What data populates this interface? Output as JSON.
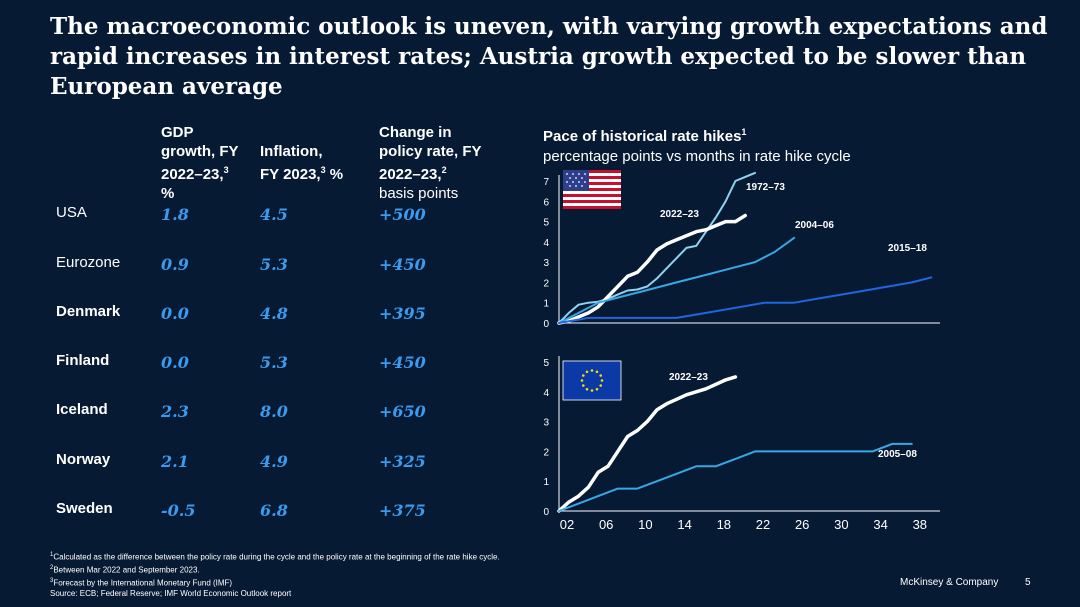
{
  "title": "The macroeconomic outlook is uneven, with varying growth expectations and rapid  increases in interest rates; Austria growth expected to be slower than European average",
  "table": {
    "headers": [
      {
        "lines": [
          "GDP",
          "growth, FY",
          "2022–23,"
        ],
        "sup": "3",
        "tail": "%"
      },
      {
        "lines": [
          "Inflation,",
          "FY 2023,"
        ],
        "sup": "3",
        "tail": " %"
      },
      {
        "lines": [
          "Change in",
          "policy rate, FY",
          "2022–23,"
        ],
        "sup": "2",
        "tail": "basis points"
      }
    ],
    "rows": [
      {
        "country": "USA",
        "gdp": "1.8",
        "inflation": "4.5",
        "rate": "+500",
        "bold": false
      },
      {
        "country": "Eurozone",
        "gdp": "0.9",
        "inflation": "5.3",
        "rate": "+450",
        "bold": false
      },
      {
        "country": "Denmark",
        "gdp": "0.0",
        "inflation": "4.8",
        "rate": "+395",
        "bold": true
      },
      {
        "country": "Finland",
        "gdp": "0.0",
        "inflation": "5.3",
        "rate": "+450",
        "bold": true
      },
      {
        "country": "Iceland",
        "gdp": "2.3",
        "inflation": "8.0",
        "rate": "+650",
        "bold": true
      },
      {
        "country": "Norway",
        "gdp": "2.1",
        "inflation": "4.9",
        "rate": "+325",
        "bold": true
      },
      {
        "country": "Sweden",
        "gdp": "-0.5",
        "inflation": "6.8",
        "rate": "+375",
        "bold": true
      }
    ]
  },
  "chart_title": {
    "main": "Pace of historical rate hikes",
    "sup": "1",
    "subtitle": "percentage points vs months in rate hike cycle"
  },
  "chart_data": [
    {
      "type": "line",
      "region_icon": "us-flag-icon",
      "ylim": [
        0,
        7
      ],
      "yticks": [
        "0",
        "1",
        "2",
        "3",
        "4",
        "5",
        "6",
        "7"
      ],
      "xlim": [
        0,
        38
      ],
      "series": [
        {
          "name": "1972–73",
          "color": "#8fd3f0",
          "x": [
            0,
            1,
            2,
            3,
            4,
            5,
            6,
            7,
            8,
            9,
            10,
            11,
            12,
            13,
            14,
            15,
            16,
            17,
            18,
            19,
            20
          ],
          "y": [
            0,
            0.5,
            0.9,
            1.0,
            1.05,
            1.2,
            1.4,
            1.6,
            1.65,
            1.8,
            2.2,
            2.7,
            3.2,
            3.7,
            3.8,
            4.5,
            5.2,
            6.0,
            7.0,
            7.2,
            7.4
          ]
        },
        {
          "name": "2022–23",
          "color": "#ffffff",
          "x": [
            0,
            1,
            2,
            3,
            4,
            5,
            6,
            7,
            8,
            9,
            10,
            11,
            12,
            13,
            14,
            15,
            16,
            17,
            18,
            19
          ],
          "y": [
            0,
            0.1,
            0.3,
            0.5,
            0.8,
            1.3,
            1.8,
            2.3,
            2.5,
            3.0,
            3.6,
            3.9,
            4.1,
            4.3,
            4.5,
            4.6,
            4.8,
            5.0,
            5.0,
            5.3
          ]
        },
        {
          "name": "2004–06",
          "color": "#38a7e6",
          "x": [
            0,
            2,
            4,
            6,
            8,
            10,
            12,
            14,
            16,
            18,
            20,
            22,
            24
          ],
          "y": [
            0,
            0.5,
            1.0,
            1.25,
            1.5,
            1.75,
            2.0,
            2.25,
            2.5,
            2.75,
            3.0,
            3.5,
            4.2
          ]
        },
        {
          "name": "2015–18",
          "color": "#1f66e0",
          "x": [
            0,
            3,
            6,
            9,
            12,
            15,
            18,
            21,
            24,
            27,
            30,
            33,
            36,
            38
          ],
          "y": [
            0,
            0.25,
            0.25,
            0.25,
            0.25,
            0.5,
            0.75,
            1.0,
            1.0,
            1.25,
            1.5,
            1.75,
            2.0,
            2.25
          ]
        }
      ]
    },
    {
      "type": "line",
      "region_icon": "eu-flag-icon",
      "ylim": [
        0,
        5
      ],
      "yticks": [
        "0",
        "1",
        "2",
        "3",
        "4",
        "5"
      ],
      "xlim": [
        0,
        38
      ],
      "xticks": [
        "02",
        "06",
        "10",
        "14",
        "18",
        "22",
        "26",
        "30",
        "34",
        "38"
      ],
      "series": [
        {
          "name": "2022–23",
          "color": "#ffffff",
          "x": [
            0,
            1,
            2,
            3,
            4,
            5,
            6,
            7,
            8,
            9,
            10,
            11,
            12,
            13,
            14,
            15,
            16,
            17,
            18
          ],
          "y": [
            0,
            0.3,
            0.5,
            0.8,
            1.3,
            1.5,
            2.0,
            2.5,
            2.7,
            3.0,
            3.4,
            3.6,
            3.75,
            3.9,
            4.0,
            4.1,
            4.25,
            4.4,
            4.5
          ]
        },
        {
          "name": "2005–08",
          "color": "#38a7e6",
          "x": [
            0,
            2,
            4,
            6,
            8,
            10,
            12,
            14,
            16,
            18,
            20,
            22,
            26,
            30,
            32,
            34,
            36
          ],
          "y": [
            0,
            0.25,
            0.5,
            0.75,
            0.75,
            1.0,
            1.25,
            1.5,
            1.5,
            1.75,
            2.0,
            2.0,
            2.0,
            2.0,
            2.0,
            2.25,
            2.25
          ]
        }
      ]
    }
  ],
  "footnotes": [
    {
      "sup": "1",
      "text": "Calculated as the difference between the policy rate during the cycle and the policy rate at the beginning of the rate hike cycle."
    },
    {
      "sup": "2",
      "text": "Between Mar 2022 and September 2023."
    },
    {
      "sup": "3",
      "text": "Forecast by the International Monetary Fund (IMF)"
    },
    {
      "sup": "",
      "text": "Source: ECB; Federal Reserve; IMF World Economic Outlook report"
    }
  ],
  "brand": "McKinsey & Company",
  "page_number": "5",
  "colors": {
    "background": "#061a33",
    "value_blue": "#3a9bf0"
  }
}
